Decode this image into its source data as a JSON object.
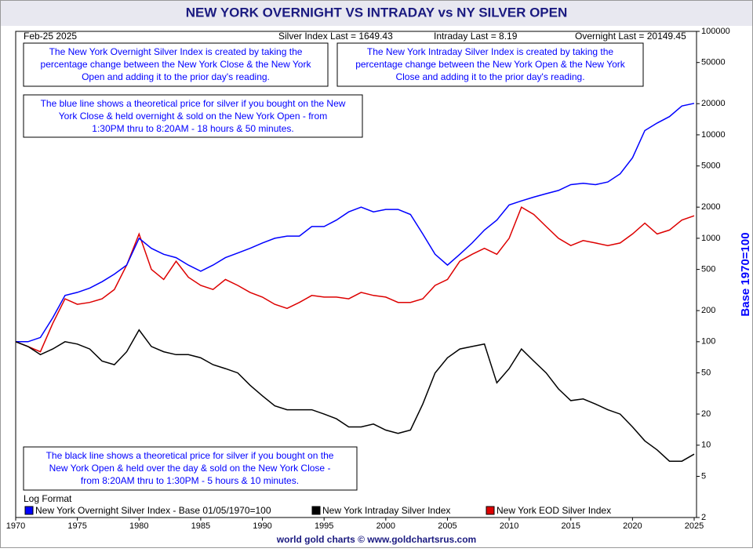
{
  "chart_data": {
    "type": "line",
    "title": "NEW YORK OVERNIGHT VS INTRADAY vs NY SILVER OPEN",
    "date": "Feb-25 2025",
    "stats": [
      "Silver Index Last = 1649.43",
      "Intraday Last = 8.19",
      "Overnight Last = 20149.45"
    ],
    "annotations": [
      {
        "lines": [
          "The New York Overnight Silver Index is created by taking the",
          "percentage change between the New York Close & the New York",
          "Open and adding it to the prior day's reading."
        ]
      },
      {
        "lines": [
          "The New York Intraday Silver Index is created by taking the",
          "percentage change between the New York Open & the New York",
          "Close and adding it to the prior day's reading."
        ]
      },
      {
        "lines": [
          "The blue line shows a theoretical price for silver if you bought on the New",
          "York Close & held overnight & sold on the New York Open - from",
          "1:30PM thru to 8:20AM - 18 hours & 50 minutes."
        ]
      },
      {
        "lines": [
          "The black line shows a theoretical price for silver if you bought on the",
          "New York Open & held over the day & sold on the New York Close -",
          "from 8:20AM thru to 1:30PM - 5 hours & 10 minutes."
        ]
      }
    ],
    "scale_note": "Log Format",
    "y_label": "Base 1970=100",
    "footer": "world gold charts © www.goldchartsrus.com",
    "log_scale": true,
    "x": [
      1970,
      1971,
      1972,
      1973,
      1974,
      1975,
      1976,
      1977,
      1978,
      1979,
      1980,
      1981,
      1982,
      1983,
      1984,
      1985,
      1986,
      1987,
      1988,
      1989,
      1990,
      1991,
      1992,
      1993,
      1994,
      1995,
      1996,
      1997,
      1998,
      1999,
      2000,
      2001,
      2002,
      2003,
      2004,
      2005,
      2006,
      2007,
      2008,
      2009,
      2010,
      2011,
      2012,
      2013,
      2014,
      2015,
      2016,
      2017,
      2018,
      2019,
      2020,
      2021,
      2022,
      2023,
      2024,
      2025
    ],
    "series": [
      {
        "name": "New York Overnight Silver Index - Base 01/05/1970=100",
        "color": "#0000ff",
        "values": [
          100,
          100,
          110,
          170,
          280,
          300,
          330,
          380,
          450,
          550,
          1000,
          800,
          700,
          650,
          550,
          480,
          550,
          650,
          720,
          800,
          900,
          1000,
          1050,
          1050,
          1300,
          1300,
          1500,
          1800,
          2000,
          1800,
          1900,
          1900,
          1700,
          1100,
          700,
          550,
          700,
          900,
          1200,
          1500,
          2100,
          2300,
          2500,
          2700,
          2900,
          3300,
          3400,
          3300,
          3500,
          4200,
          6000,
          11000,
          13000,
          15000,
          19000,
          20149.45
        ]
      },
      {
        "name": "New York Intraday Silver Index",
        "color": "#000000",
        "values": [
          100,
          90,
          75,
          85,
          100,
          95,
          85,
          65,
          60,
          80,
          130,
          90,
          80,
          75,
          75,
          70,
          60,
          55,
          50,
          38,
          30,
          24,
          22,
          22,
          22,
          20,
          18,
          15,
          15,
          16,
          14,
          13,
          14,
          25,
          50,
          70,
          85,
          90,
          95,
          40,
          55,
          85,
          65,
          50,
          35,
          27,
          28,
          25,
          22,
          20,
          15,
          11,
          9,
          7,
          7,
          8.19
        ]
      },
      {
        "name": "New York EOD Silver Index",
        "color": "#dd0000",
        "values": [
          100,
          90,
          80,
          150,
          260,
          230,
          240,
          260,
          320,
          550,
          1100,
          500,
          400,
          600,
          420,
          350,
          320,
          400,
          350,
          300,
          270,
          230,
          210,
          240,
          280,
          270,
          270,
          260,
          300,
          280,
          270,
          240,
          240,
          260,
          350,
          400,
          600,
          700,
          800,
          700,
          1000,
          2000,
          1700,
          1300,
          1000,
          850,
          950,
          900,
          850,
          900,
          1100,
          1400,
          1100,
          1200,
          1500,
          1649.43
        ]
      }
    ],
    "xlim": [
      1970,
      2025
    ],
    "xticks": [
      1970,
      1975,
      1980,
      1985,
      1990,
      1995,
      2000,
      2005,
      2010,
      2015,
      2020,
      2025
    ],
    "ylim": [
      2,
      100000
    ],
    "yticks": [
      2,
      5,
      10,
      20,
      50,
      100,
      200,
      500,
      1000,
      2000,
      5000,
      10000,
      20000,
      50000,
      100000
    ]
  }
}
